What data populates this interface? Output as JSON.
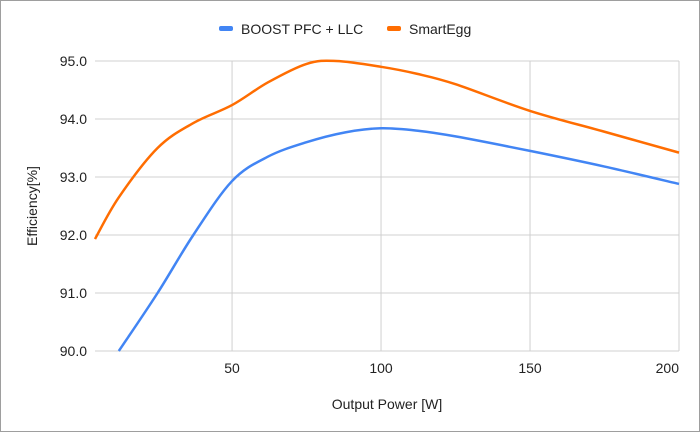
{
  "chart_data": {
    "type": "line",
    "title": "",
    "xlabel": "Output Power [W]",
    "ylabel": "Efficiency[%]",
    "xlim": [
      4,
      200
    ],
    "ylim": [
      90,
      95
    ],
    "xticks": [
      50,
      100,
      150,
      200
    ],
    "yticks": [
      90.0,
      91.0,
      92.0,
      93.0,
      94.0,
      95.0
    ],
    "ytick_labels": [
      "90.0",
      "91.0",
      "92.0",
      "93.0",
      "94.0",
      "95.0"
    ],
    "xtick_labels": [
      "50",
      "100",
      "150",
      "200"
    ],
    "grid": true,
    "legend_position": "top",
    "smooth": true,
    "series": [
      {
        "name": "BOOST PFC + LLC",
        "color": "#4285F4",
        "x": [
          12,
          25,
          37,
          50,
          62,
          75,
          88,
          100,
          112,
          125,
          150,
          175,
          200
        ],
        "y": [
          90.0,
          91.0,
          92.0,
          92.93,
          93.35,
          93.6,
          93.77,
          93.84,
          93.8,
          93.7,
          93.45,
          93.18,
          92.88
        ]
      },
      {
        "name": "SmartEgg",
        "color": "#FF6D01",
        "x": [
          4,
          12,
          25,
          37,
          50,
          62,
          75,
          85,
          100,
          112,
          125,
          150,
          175,
          200
        ],
        "y": [
          91.93,
          92.65,
          93.5,
          93.93,
          94.24,
          94.63,
          94.95,
          95.0,
          94.9,
          94.78,
          94.6,
          94.14,
          93.78,
          93.42
        ]
      }
    ]
  }
}
